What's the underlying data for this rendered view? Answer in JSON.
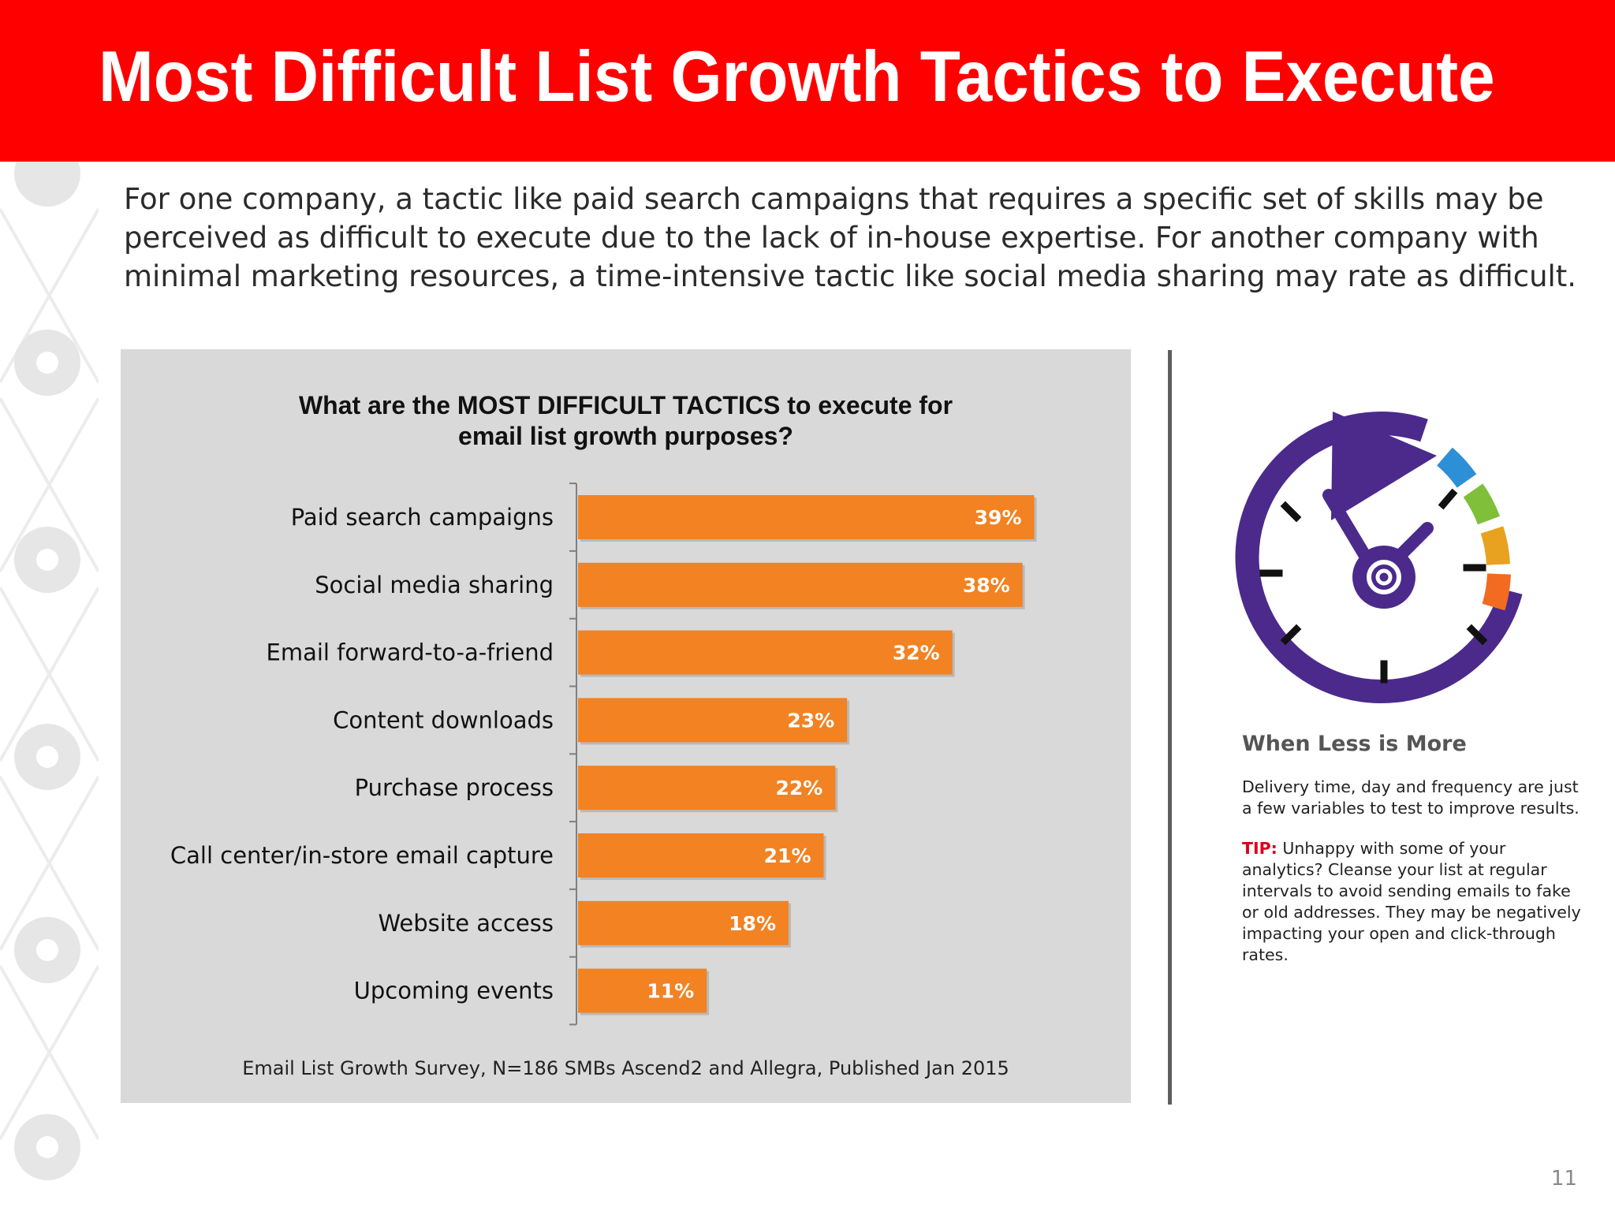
{
  "header": {
    "title": "Most Difficult List Growth Tactics to Execute"
  },
  "intro": "For one company, a tactic like paid search campaigns that requires a specific set of skills may be perceived as difficult to execute due to the lack of in-house expertise. For another company with minimal marketing resources, a time-intensive tactic like social media sharing may rate as difficult.",
  "chart_data": {
    "type": "bar",
    "orientation": "horizontal",
    "title_lines": [
      "What are the MOST DIFFICULT TACTICS to execute for",
      "email list growth purposes?"
    ],
    "categories": [
      "Paid search campaigns",
      "Social media sharing",
      "Email forward-to-a-friend",
      "Content downloads",
      "Purchase process",
      "Call center/in-store email capture",
      "Website access",
      "Upcoming events"
    ],
    "values": [
      39,
      38,
      32,
      23,
      22,
      21,
      18,
      11
    ],
    "data_labels": [
      "39%",
      "38%",
      "32%",
      "23%",
      "22%",
      "21%",
      "18%",
      "11%"
    ],
    "unit": "%",
    "xlim": [
      0,
      42
    ],
    "grid": false,
    "legend": "none",
    "bar_color": "#f28222",
    "source": "Email List Growth Survey, N=186 SMBs Ascend2 and Allegra, Published Jan 2015"
  },
  "sidebar": {
    "icon": "clock-at-icon",
    "heading": "When Less is More",
    "text": "Delivery time, day and frequency are just a few variables to test to improve results.",
    "tip_label": "TIP:",
    "tip_text": "Unhappy with some of your analytics? Cleanse your list at regular intervals to avoid sending emails to fake or old addresses. They may be negatively impacting your open and click-through rates."
  },
  "page_number": "11",
  "colors": {
    "header": "#ff0000",
    "bar": "#f28222",
    "panel": "#d9d9d9",
    "clock": "#4b2a8c",
    "tip": "#d9001b"
  }
}
